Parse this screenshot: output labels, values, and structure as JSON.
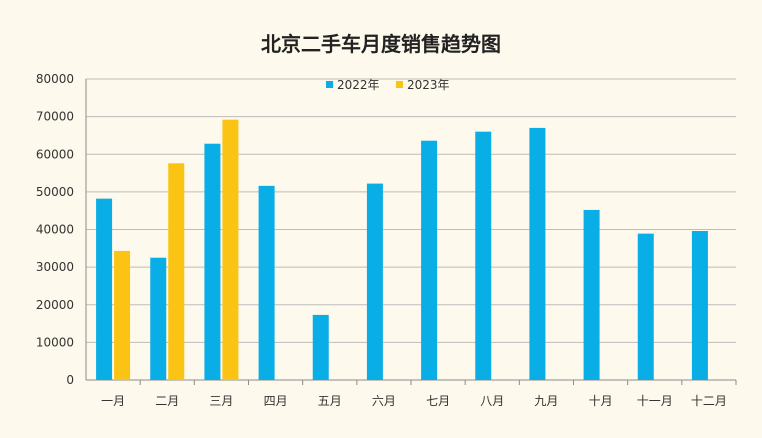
{
  "chart_data": {
    "type": "bar",
    "title": "北京二手车月度销售趋势图",
    "xlabel": "",
    "ylabel": "",
    "categories": [
      "一月",
      "二月",
      "三月",
      "四月",
      "五月",
      "六月",
      "七月",
      "八月",
      "九月",
      "十月",
      "十一月",
      "十二月"
    ],
    "series": [
      {
        "name": "2022年",
        "color": "#0aaee6",
        "values": [
          48200,
          32500,
          62800,
          51600,
          17300,
          52200,
          63600,
          66000,
          67000,
          45200,
          38900,
          39600
        ]
      },
      {
        "name": "2023年",
        "color": "#fbc313",
        "values": [
          34300,
          57600,
          69200,
          null,
          null,
          null,
          null,
          null,
          null,
          null,
          null,
          null
        ]
      }
    ],
    "ylim": [
      0,
      80000
    ],
    "yticks": [
      0,
      10000,
      20000,
      30000,
      40000,
      50000,
      60000,
      70000,
      80000
    ],
    "grid": true,
    "legend_position": "top"
  },
  "colors": {
    "background": "#fdf9ec",
    "grid": "#bdbdbd",
    "axis": "#8c8c8c"
  }
}
